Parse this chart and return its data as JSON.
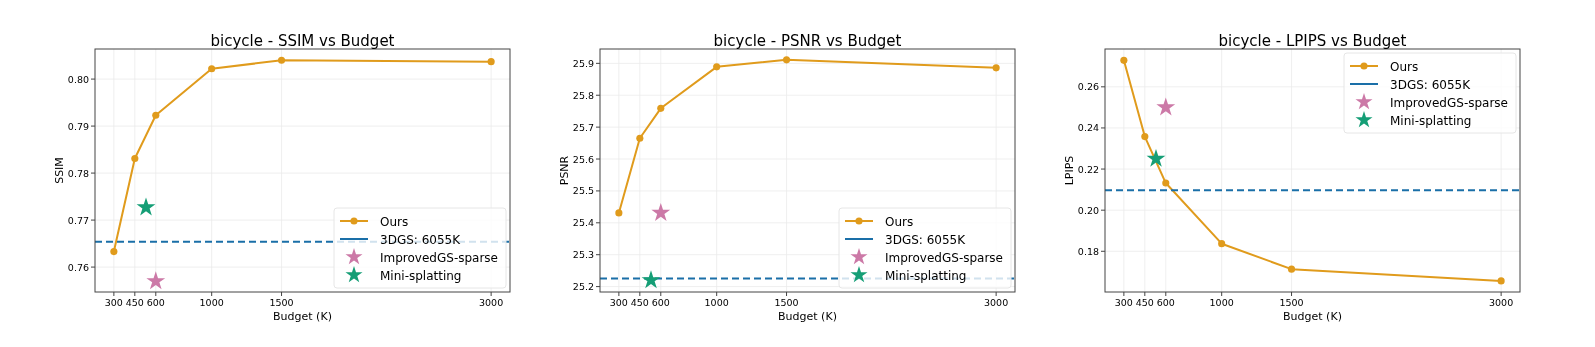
{
  "chart_data": [
    {
      "type": "line",
      "title": "bicycle - SSIM vs Budget",
      "xlabel": "Budget (K)",
      "ylabel": "SSIM",
      "xlim": [
        165,
        3135
      ],
      "xticks": [
        300,
        450,
        600,
        1000,
        1500,
        3000
      ],
      "ylim": [
        0.7547,
        0.8064
      ],
      "yticks": [
        0.76,
        0.77,
        0.78,
        0.79,
        {
          "value": 0.8,
          "label": "0.80"
        }
      ],
      "grid": true,
      "legend": "bottom right",
      "series": [
        {
          "name": "Ours",
          "color": "#e09b1c",
          "marker": "circle",
          "x": [
            300,
            450,
            600,
            1000,
            1500,
            3000
          ],
          "values": [
            0.7633,
            0.7831,
            0.7923,
            0.8022,
            0.804,
            0.8037
          ]
        },
        {
          "name": "3DGS: 6055K",
          "color": "#1a6fa8",
          "marker": "none",
          "line_style": "dashed",
          "x": [
            165,
            3135
          ],
          "values": [
            0.7654,
            0.7654
          ]
        },
        {
          "name": "ImprovedGS-sparse",
          "type": "scatter",
          "color": "#cc79a7",
          "marker": "star",
          "x": [
            600
          ],
          "values": [
            0.757
          ]
        },
        {
          "name": "Mini-splatting",
          "type": "scatter",
          "color": "#159e76",
          "marker": "star",
          "x": [
            530
          ],
          "values": [
            0.7727
          ]
        }
      ]
    },
    {
      "type": "line",
      "title": "bicycle - PSNR vs Budget",
      "xlabel": "Budget (K)",
      "ylabel": "PSNR",
      "xlim": [
        165,
        3135
      ],
      "xticks": [
        300,
        450,
        600,
        1000,
        1500,
        3000
      ],
      "ylim": [
        25.183,
        25.945
      ],
      "yticks": [
        25.2,
        25.3,
        25.4,
        25.5,
        25.6,
        25.7,
        25.8,
        25.9
      ],
      "grid": true,
      "legend": "bottom right",
      "series": [
        {
          "name": "Ours",
          "color": "#e09b1c",
          "marker": "circle",
          "x": [
            300,
            450,
            600,
            1000,
            1500,
            3000
          ],
          "values": [
            25.431,
            25.665,
            25.759,
            25.889,
            25.911,
            25.886
          ]
        },
        {
          "name": "3DGS: 6055K",
          "color": "#1a6fa8",
          "marker": "none",
          "line_style": "dashed",
          "x": [
            165,
            3135
          ],
          "values": [
            25.225,
            25.225
          ]
        },
        {
          "name": "ImprovedGS-sparse",
          "type": "scatter",
          "color": "#cc79a7",
          "marker": "star",
          "x": [
            600
          ],
          "values": [
            25.431
          ]
        },
        {
          "name": "Mini-splatting",
          "type": "scatter",
          "color": "#159e76",
          "marker": "star",
          "x": [
            530
          ],
          "values": [
            25.22
          ]
        }
      ]
    },
    {
      "type": "line",
      "title": "bicycle - LPIPS vs Budget",
      "xlabel": "Budget (K)",
      "ylabel": "LPIPS",
      "xlim": [
        165,
        3135
      ],
      "xticks": [
        300,
        450,
        600,
        1000,
        1500,
        3000
      ],
      "ylim": [
        0.1602,
        0.2784
      ],
      "yticks": [
        0.18,
        {
          "value": 0.2,
          "label": "0.20"
        },
        0.22,
        0.24,
        0.26
      ],
      "grid": true,
      "legend": "top right",
      "series": [
        {
          "name": "Ours",
          "color": "#e09b1c",
          "marker": "circle",
          "x": [
            300,
            450,
            600,
            1000,
            1500,
            3000
          ],
          "values": [
            0.2729,
            0.2358,
            0.2132,
            0.1837,
            0.1713,
            0.1656
          ]
        },
        {
          "name": "3DGS: 6055K",
          "color": "#1a6fa8",
          "marker": "none",
          "line_style": "dashed",
          "x": [
            165,
            3135
          ],
          "values": [
            0.2097,
            0.2097
          ]
        },
        {
          "name": "ImprovedGS-sparse",
          "type": "scatter",
          "color": "#cc79a7",
          "marker": "star",
          "x": [
            600
          ],
          "values": [
            0.25
          ]
        },
        {
          "name": "Mini-splatting",
          "type": "scatter",
          "color": "#159e76",
          "marker": "star",
          "x": [
            530
          ],
          "values": [
            0.225
          ]
        }
      ]
    }
  ]
}
